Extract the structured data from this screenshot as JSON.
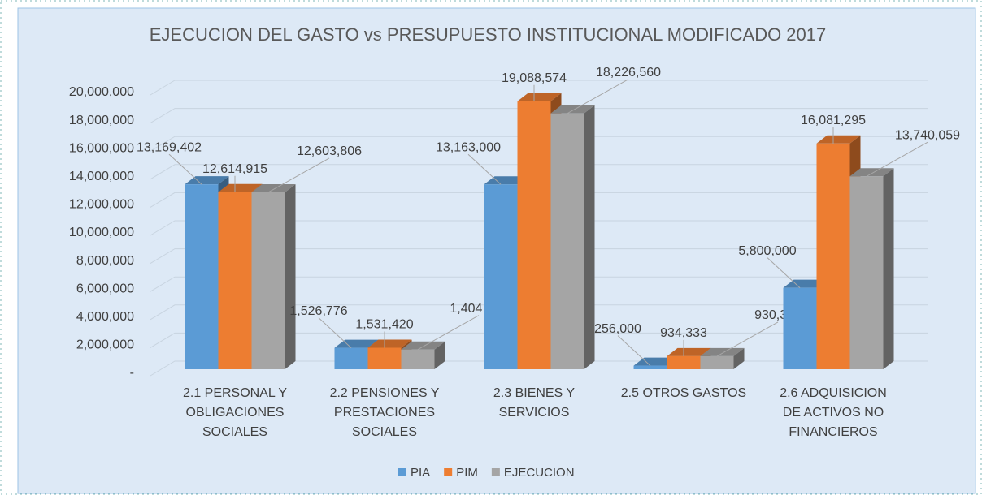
{
  "chart_data": {
    "type": "bar3d",
    "title": "EJECUCION DEL GASTO vs PRESUPUESTO INSTITUCIONAL MODIFICADO 2017",
    "categories": [
      "2.1 PERSONAL Y OBLIGACIONES SOCIALES",
      "2.2  PENSIONES Y PRESTACIONES SOCIALES",
      "2.3  BIENES Y SERVICIOS",
      "2.5  OTROS GASTOS",
      "2.6 ADQUISICION DE ACTIVOS NO FINANCIEROS"
    ],
    "series": [
      {
        "name": "PIA",
        "color": "#5b9bd5",
        "values": [
          13169402,
          1526776,
          13163000,
          256000,
          5800000
        ],
        "value_labels": [
          "13,169,402",
          "1,526,776",
          "13,163,000",
          "256,000",
          "5,800,000"
        ]
      },
      {
        "name": "PIM",
        "color": "#ed7d31",
        "values": [
          12614915,
          1531420,
          19088574,
          934333,
          16081295
        ],
        "value_labels": [
          "12,614,915",
          "1,531,420",
          "19,088,574",
          "934,333",
          "16,081,295"
        ]
      },
      {
        "name": "EJECUCION",
        "color": "#a5a5a5",
        "values": [
          12603806,
          1404706,
          18226560,
          930364,
          13740059
        ],
        "value_labels": [
          "12,603,806",
          "1,404,706",
          "18,226,560",
          "930,364",
          "13,740,059"
        ]
      }
    ],
    "ylim": [
      0,
      20000000
    ],
    "yticks": [
      {
        "value": 0,
        "label": "-"
      },
      {
        "value": 2000000,
        "label": "2,000,000"
      },
      {
        "value": 4000000,
        "label": "4,000,000"
      },
      {
        "value": 6000000,
        "label": "6,000,000"
      },
      {
        "value": 8000000,
        "label": "8,000,000"
      },
      {
        "value": 10000000,
        "label": "10,000,000"
      },
      {
        "value": 12000000,
        "label": "12,000,000"
      },
      {
        "value": 14000000,
        "label": "14,000,000"
      },
      {
        "value": 16000000,
        "label": "16,000,000"
      },
      {
        "value": 18000000,
        "label": "18,000,000"
      },
      {
        "value": 20000000,
        "label": "20,000,000"
      }
    ],
    "grid": true,
    "legend": "bottom"
  }
}
